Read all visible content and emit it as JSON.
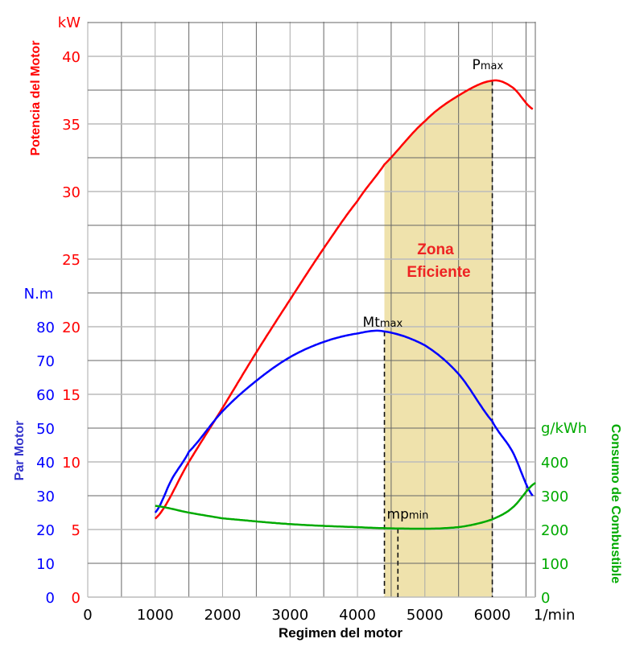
{
  "chart_data": {
    "type": "line",
    "x_axis": {
      "label": "Regimen del motor",
      "unit": "1/min",
      "range": [
        0,
        6600
      ],
      "ticks": [
        0,
        1000,
        2000,
        3000,
        4000,
        5000,
        6000
      ]
    },
    "y_axes": [
      {
        "id": "power",
        "label": "Potencia del Motor",
        "unit": "kW",
        "color": "#ff0000",
        "range": [
          0,
          42.5
        ],
        "ticks": [
          0,
          5,
          10,
          15,
          20,
          25,
          30,
          35,
          40
        ]
      },
      {
        "id": "torque",
        "label": "Par Motor",
        "unit": "N.m",
        "color": "#0000ff",
        "label_color": "#3333cc",
        "range": [
          0,
          85
        ],
        "ticks": [
          0,
          10,
          20,
          30,
          40,
          50,
          60,
          70,
          80
        ]
      },
      {
        "id": "consumption",
        "label": "Consumo de Combustible",
        "unit": "g/kWh",
        "color": "#00aa00",
        "range": [
          0,
          400
        ],
        "ticks": [
          0,
          100,
          200,
          300,
          400
        ]
      }
    ],
    "series": [
      {
        "name": "Potencia",
        "axis": "power",
        "color": "#ff0000",
        "x": [
          1000,
          1500,
          2000,
          2500,
          3000,
          3500,
          4000,
          4400,
          5000,
          5500,
          6000,
          6300,
          6600
        ],
        "y": [
          5.8,
          10,
          14,
          18.1,
          22,
          25.8,
          29.3,
          32,
          35.2,
          37.1,
          38.2,
          37.7,
          36.1
        ]
      },
      {
        "name": "Par",
        "axis": "torque",
        "color": "#0000ff",
        "x": [
          1000,
          1250,
          1500,
          2000,
          2500,
          3000,
          3500,
          4000,
          4400,
          5000,
          5500,
          6000,
          6300,
          6600
        ],
        "y": [
          25,
          35,
          43,
          55,
          64,
          71,
          75.5,
          78,
          78.6,
          74.5,
          66,
          52,
          43,
          30
        ]
      },
      {
        "name": "Consumo",
        "axis": "consumption",
        "color": "#00aa00",
        "x": [
          1000,
          1500,
          2000,
          3000,
          4000,
          4600,
          5200,
          5600,
          6000,
          6300,
          6640
        ],
        "y": [
          270,
          250,
          233,
          216,
          207,
          203,
          203,
          210,
          230,
          265,
          338
        ]
      }
    ],
    "zone": {
      "label_line1": "Zona",
      "label_line2": "Eficiente",
      "from": 4400,
      "to": 6000,
      "color": "#efe2ac",
      "label_color": "#ee2222"
    },
    "markers": [
      {
        "base": "P",
        "sub": "max",
        "x": 6000
      },
      {
        "base": "Mt",
        "sub": "max",
        "x": 4400
      },
      {
        "base": "mp",
        "sub": "min",
        "x": 4600
      }
    ],
    "grid": true
  }
}
